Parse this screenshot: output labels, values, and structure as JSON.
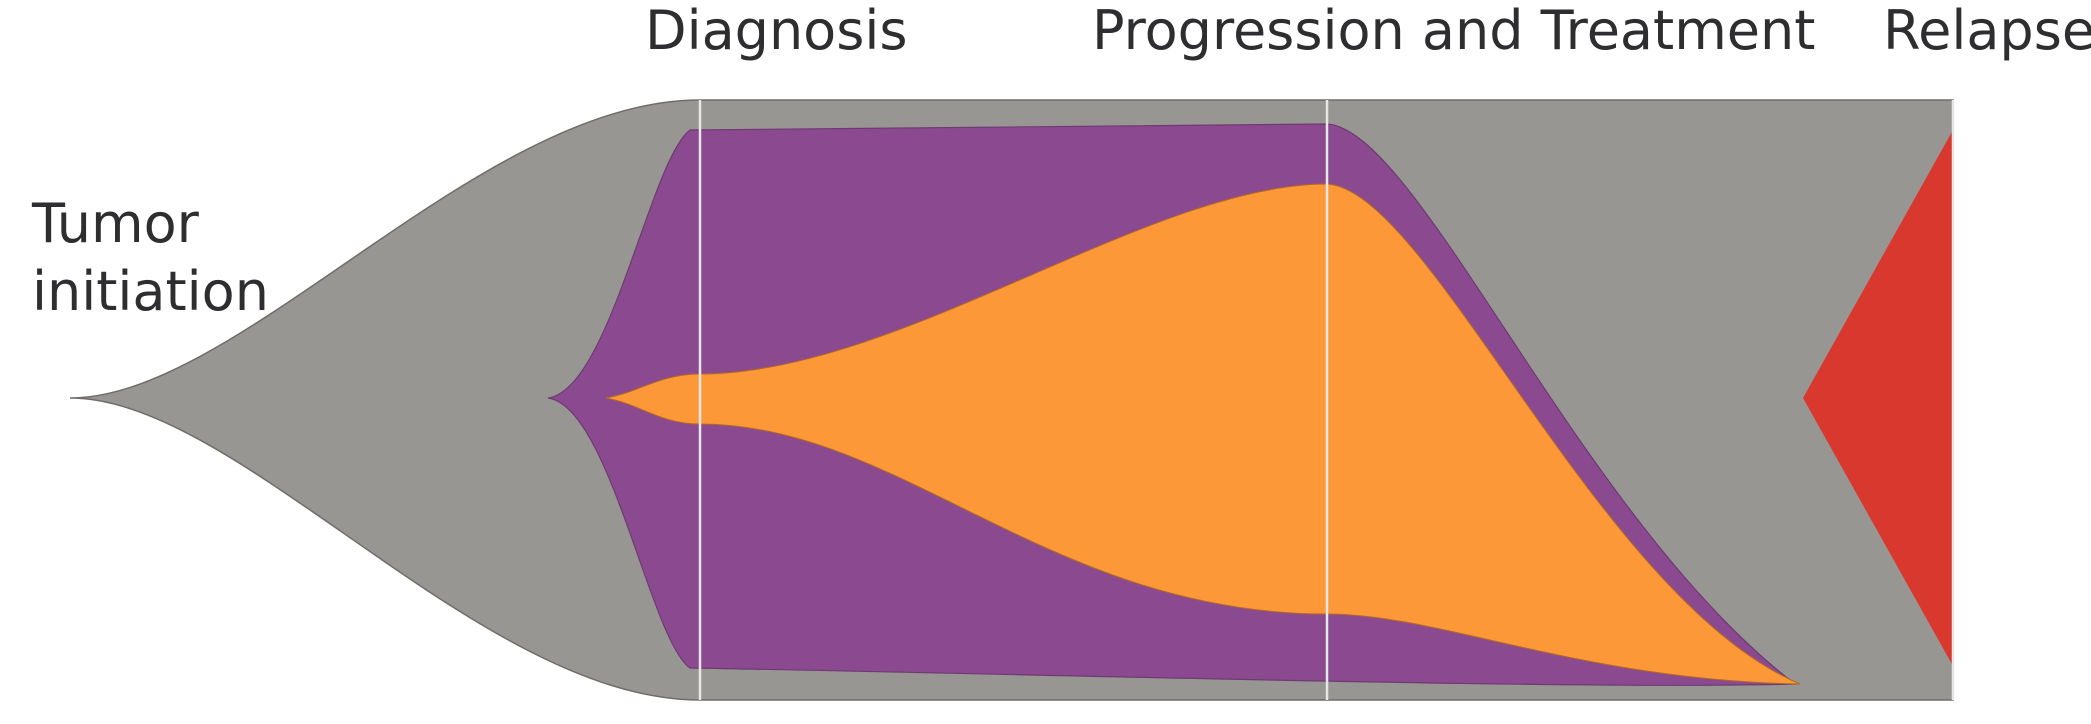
{
  "timepoints": {
    "initiation_line1": "Tumor",
    "initiation_line2": "initiation",
    "diagnosis": "Diagnosis",
    "progression": "Progression and Treatment",
    "relapse": "Relapse"
  },
  "colors": {
    "background": "#ffffff",
    "founder_clone": "#989692",
    "subclone_1": "#8b4a8f",
    "subclone_2": "#fd9838",
    "relapse_clone": "#d9382e",
    "timepoint_line": "#e6e6e6",
    "label_text": "#2e2e30"
  }
}
